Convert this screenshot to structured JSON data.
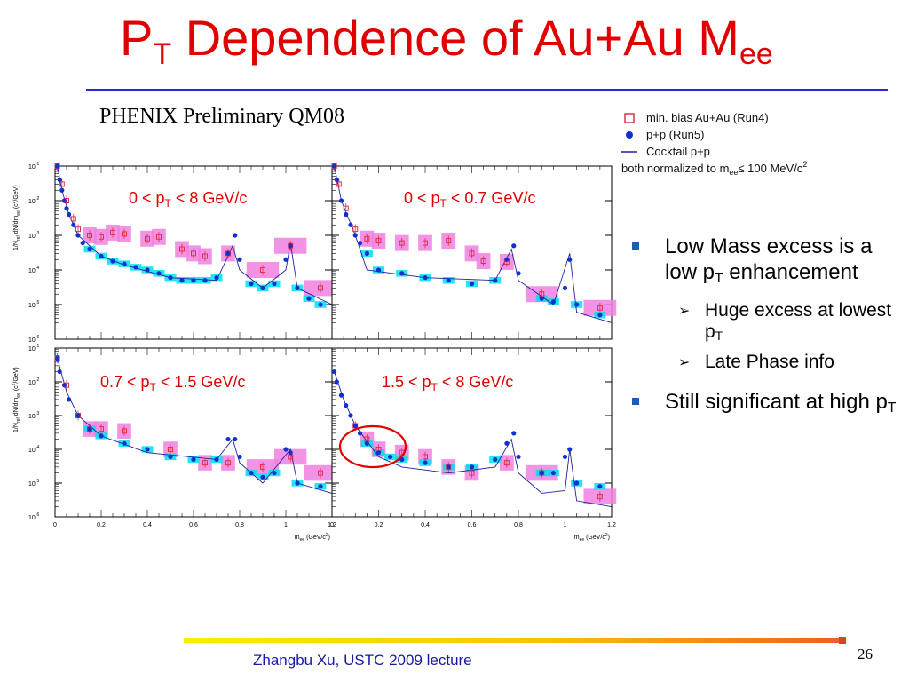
{
  "slide": {
    "title_main": "P",
    "title_sub": "T",
    "title_rest": " Dependence of Au+Au M",
    "title_sub2": "ee",
    "subtitle": "PHENIX Preliminary QM08",
    "footer": "Zhangbu Xu, USTC 2009 lecture",
    "page_number": "26"
  },
  "legend": {
    "items": [
      {
        "label": "min. bias Au+Au (Run4)",
        "symbol": "open-square",
        "color": "#e0304a"
      },
      {
        "label": "p+p (Run5)",
        "symbol": "filled-circle",
        "color": "#1030d0"
      },
      {
        "label": "Cocktail p+p",
        "symbol": "line",
        "color": "#2020a0"
      }
    ],
    "note": "both normalized to m",
    "note_sub": "ee",
    "note_rest": " ≤ 100 MeV/c",
    "note_sup": "2"
  },
  "bullets": [
    {
      "text_a": "Low Mass excess is a low p",
      "sub": "T",
      "text_b": " enhancement",
      "children": [
        {
          "text_a": "Huge excess at lowest p",
          "sub": "T",
          "text_b": ""
        },
        {
          "text_a": "Late Phase info",
          "sub": "",
          "text_b": ""
        }
      ]
    },
    {
      "text_a": "Still significant at high p",
      "sub": "T",
      "text_b": "",
      "children": []
    }
  ],
  "panels": [
    {
      "label_a": "0 < p",
      "label_sub": "T",
      "label_b": " < 8 GeV/c"
    },
    {
      "label_a": "0 < p",
      "label_sub": "T",
      "label_b": " < 0.7 GeV/c"
    },
    {
      "label_a": "0.7 < p",
      "label_sub": "T",
      "label_b": " < 1.5 GeV/c"
    },
    {
      "label_a": "1.5 < p",
      "label_sub": "T",
      "label_b": " < 8 GeV/c"
    }
  ],
  "chart_data": {
    "type": "scatter",
    "xlabel": "m",
    "xlabel_sub": "ee",
    "xlabel_rest": " (GeV/c",
    "xlabel_sup": "2",
    "xlabel_close": ")",
    "ylabel": "1/N",
    "ylabel_sub": "ref",
    "ylabel_rest": " dN/dm",
    "ylabel_sub2": "ee",
    "ylabel_unit": " (c",
    "ylabel_sup": "2",
    "ylabel_close": "/GeV)",
    "xlim": [
      0,
      1.2
    ],
    "ylim": [
      1e-06,
      0.1
    ],
    "log_y": true,
    "x_ticks_left": [
      "0",
      "0.2",
      "0.4",
      "0.6",
      "0.8",
      "1",
      "1.2"
    ],
    "x_ticks_right": [
      "0",
      "0.2",
      "0.4",
      "0.6",
      "0.8",
      "1",
      "1.2"
    ],
    "y_ticks": [
      "10",
      "10",
      "10",
      "10",
      "10",
      "10"
    ],
    "y_tick_exps": [
      "-1",
      "-2",
      "-3",
      "-4",
      "-5",
      "-6"
    ],
    "colors": {
      "auau": "#e0304a",
      "auau_box": "#f080e0",
      "pp": "#1030d0",
      "pp_box": "#00e0f0",
      "cocktail": "#2020a0",
      "highlight": "#e00000"
    },
    "panels": [
      {
        "pp": [
          [
            0.01,
            0.1
          ],
          [
            0.02,
            0.04
          ],
          [
            0.03,
            0.02
          ],
          [
            0.04,
            0.01
          ],
          [
            0.05,
            0.006
          ],
          [
            0.06,
            0.004
          ],
          [
            0.08,
            0.002
          ],
          [
            0.1,
            0.001
          ],
          [
            0.12,
            0.0006
          ],
          [
            0.15,
            0.0004
          ],
          [
            0.2,
            0.00025
          ],
          [
            0.25,
            0.00018
          ],
          [
            0.3,
            0.00015
          ],
          [
            0.35,
            0.00012
          ],
          [
            0.4,
            0.0001
          ],
          [
            0.45,
            8e-05
          ],
          [
            0.5,
            6e-05
          ],
          [
            0.55,
            5e-05
          ],
          [
            0.6,
            5e-05
          ],
          [
            0.65,
            5e-05
          ],
          [
            0.7,
            6e-05
          ],
          [
            0.75,
            0.0003
          ],
          [
            0.78,
            0.001
          ],
          [
            0.8,
            0.0002
          ],
          [
            0.85,
            4e-05
          ],
          [
            0.9,
            3e-05
          ],
          [
            0.95,
            4e-05
          ],
          [
            1.0,
            0.0002
          ],
          [
            1.02,
            0.0005
          ],
          [
            1.05,
            3e-05
          ],
          [
            1.1,
            1.5e-05
          ],
          [
            1.15,
            1e-05
          ]
        ],
        "auau": [
          [
            0.01,
            0.1
          ],
          [
            0.03,
            0.03
          ],
          [
            0.05,
            0.01
          ],
          [
            0.08,
            0.003
          ],
          [
            0.1,
            0.0015
          ],
          [
            0.15,
            0.001
          ],
          [
            0.2,
            0.0009
          ],
          [
            0.25,
            0.0012
          ],
          [
            0.3,
            0.0011
          ],
          [
            0.4,
            0.0008
          ],
          [
            0.45,
            0.0009
          ],
          [
            0.55,
            0.0004
          ],
          [
            0.6,
            0.0003
          ],
          [
            0.65,
            0.00025
          ],
          [
            0.75,
            0.0003
          ],
          [
            0.9,
            0.0001
          ],
          [
            1.02,
            0.0005
          ],
          [
            1.15,
            3e-05
          ]
        ],
        "cocktail": [
          [
            0.01,
            0.1
          ],
          [
            0.03,
            0.02
          ],
          [
            0.06,
            0.004
          ],
          [
            0.1,
            0.001
          ],
          [
            0.2,
            0.00025
          ],
          [
            0.3,
            0.00014
          ],
          [
            0.5,
            6e-05
          ],
          [
            0.7,
            5e-05
          ],
          [
            0.77,
            0.0005
          ],
          [
            0.8,
            0.0001
          ],
          [
            0.9,
            3e-05
          ],
          [
            1.0,
            0.0001
          ],
          [
            1.02,
            0.0006
          ],
          [
            1.05,
            3e-05
          ],
          [
            1.2,
            1e-05
          ]
        ]
      },
      {
        "pp": [
          [
            0.01,
            0.1
          ],
          [
            0.02,
            0.04
          ],
          [
            0.04,
            0.01
          ],
          [
            0.06,
            0.004
          ],
          [
            0.08,
            0.002
          ],
          [
            0.1,
            0.001
          ],
          [
            0.12,
            0.0006
          ],
          [
            0.15,
            0.0003
          ],
          [
            0.2,
            0.0001
          ],
          [
            0.3,
            8e-05
          ],
          [
            0.4,
            6e-05
          ],
          [
            0.5,
            5e-05
          ],
          [
            0.6,
            4e-05
          ],
          [
            0.7,
            5e-05
          ],
          [
            0.75,
            0.0002
          ],
          [
            0.78,
            0.0005
          ],
          [
            0.8,
            8e-05
          ],
          [
            0.9,
            1.5e-05
          ],
          [
            0.95,
            1.2e-05
          ],
          [
            1.0,
            3e-05
          ],
          [
            1.02,
            0.0002
          ],
          [
            1.05,
            1e-05
          ],
          [
            1.15,
            5e-06
          ]
        ],
        "auau": [
          [
            0.01,
            0.1
          ],
          [
            0.03,
            0.03
          ],
          [
            0.06,
            0.006
          ],
          [
            0.1,
            0.0015
          ],
          [
            0.15,
            0.0008
          ],
          [
            0.2,
            0.0007
          ],
          [
            0.3,
            0.0006
          ],
          [
            0.4,
            0.0006
          ],
          [
            0.5,
            0.0007
          ],
          [
            0.6,
            0.0003
          ],
          [
            0.65,
            0.00018
          ],
          [
            0.75,
            0.00017
          ],
          [
            0.9,
            2e-05
          ],
          [
            1.15,
            8e-06
          ]
        ],
        "cocktail": [
          [
            0.01,
            0.1
          ],
          [
            0.04,
            0.01
          ],
          [
            0.1,
            0.001
          ],
          [
            0.15,
            0.0001
          ],
          [
            0.4,
            6e-05
          ],
          [
            0.7,
            5e-05
          ],
          [
            0.77,
            0.0004
          ],
          [
            0.8,
            5e-05
          ],
          [
            0.95,
            1e-05
          ],
          [
            1.02,
            0.0003
          ],
          [
            1.05,
            6e-06
          ],
          [
            1.2,
            3e-06
          ]
        ]
      },
      {
        "pp": [
          [
            0.01,
            0.05
          ],
          [
            0.02,
            0.02
          ],
          [
            0.04,
            0.008
          ],
          [
            0.06,
            0.003
          ],
          [
            0.1,
            0.001
          ],
          [
            0.15,
            0.0004
          ],
          [
            0.2,
            0.00025
          ],
          [
            0.3,
            0.00015
          ],
          [
            0.4,
            0.0001
          ],
          [
            0.5,
            6e-05
          ],
          [
            0.6,
            5e-05
          ],
          [
            0.7,
            5e-05
          ],
          [
            0.75,
            0.0002
          ],
          [
            0.78,
            0.0002
          ],
          [
            0.8,
            6e-05
          ],
          [
            0.85,
            2e-05
          ],
          [
            0.9,
            1.5e-05
          ],
          [
            0.95,
            2e-05
          ],
          [
            1.0,
            0.0001
          ],
          [
            1.02,
            8e-05
          ],
          [
            1.05,
            1e-05
          ],
          [
            1.15,
            8e-06
          ]
        ],
        "auau": [
          [
            0.01,
            0.05
          ],
          [
            0.05,
            0.008
          ],
          [
            0.1,
            0.001
          ],
          [
            0.15,
            0.0004
          ],
          [
            0.2,
            0.0004
          ],
          [
            0.3,
            0.00035
          ],
          [
            0.5,
            0.0001
          ],
          [
            0.65,
            4e-05
          ],
          [
            0.75,
            4e-05
          ],
          [
            0.9,
            3e-05
          ],
          [
            1.02,
            6e-05
          ],
          [
            1.15,
            2e-05
          ]
        ],
        "cocktail": [
          [
            0.01,
            0.05
          ],
          [
            0.05,
            0.005
          ],
          [
            0.1,
            0.001
          ],
          [
            0.2,
            0.00025
          ],
          [
            0.4,
            8e-05
          ],
          [
            0.7,
            5e-05
          ],
          [
            0.77,
            0.0002
          ],
          [
            0.8,
            4e-05
          ],
          [
            0.9,
            1e-05
          ],
          [
            1.02,
            0.0001
          ],
          [
            1.05,
            1e-05
          ],
          [
            1.2,
            5e-06
          ]
        ]
      },
      {
        "pp": [
          [
            0.01,
            0.02
          ],
          [
            0.02,
            0.01
          ],
          [
            0.04,
            0.004
          ],
          [
            0.06,
            0.002
          ],
          [
            0.08,
            0.001
          ],
          [
            0.1,
            0.0005
          ],
          [
            0.12,
            0.0003
          ],
          [
            0.15,
            0.00015
          ],
          [
            0.2,
            8e-05
          ],
          [
            0.25,
            6e-05
          ],
          [
            0.3,
            5e-05
          ],
          [
            0.4,
            4e-05
          ],
          [
            0.5,
            3e-05
          ],
          [
            0.6,
            3e-05
          ],
          [
            0.7,
            5e-05
          ],
          [
            0.75,
            0.00015
          ],
          [
            0.78,
            0.0003
          ],
          [
            0.8,
            6e-05
          ],
          [
            0.9,
            2e-05
          ],
          [
            0.95,
            2e-05
          ],
          [
            1.0,
            6e-05
          ],
          [
            1.02,
            0.0001
          ],
          [
            1.05,
            1e-05
          ],
          [
            1.15,
            8e-06
          ]
        ],
        "auau": [
          [
            0.1,
            0.0005
          ],
          [
            0.15,
            0.0002
          ],
          [
            0.2,
            0.0001
          ],
          [
            0.3,
            8e-05
          ],
          [
            0.4,
            6e-05
          ],
          [
            0.5,
            3e-05
          ],
          [
            0.6,
            2e-05
          ],
          [
            0.75,
            4e-05
          ],
          [
            0.9,
            2e-05
          ],
          [
            1.15,
            4e-06
          ]
        ],
        "cocktail": [
          [
            0.01,
            0.02
          ],
          [
            0.05,
            0.003
          ],
          [
            0.1,
            0.0005
          ],
          [
            0.2,
            6e-05
          ],
          [
            0.3,
            3e-05
          ],
          [
            0.5,
            2e-05
          ],
          [
            0.7,
            3e-05
          ],
          [
            0.77,
            0.0002
          ],
          [
            0.8,
            2e-05
          ],
          [
            0.9,
            5e-06
          ],
          [
            1.0,
            6e-06
          ],
          [
            1.02,
            0.0001
          ],
          [
            1.05,
            3e-06
          ],
          [
            1.2,
            2e-06
          ]
        ]
      }
    ]
  }
}
